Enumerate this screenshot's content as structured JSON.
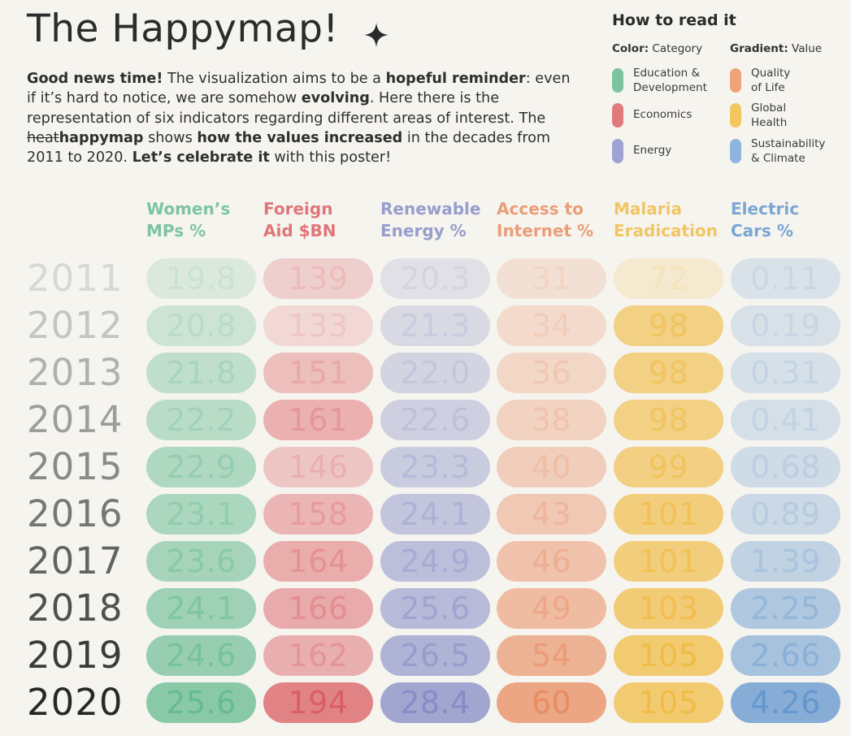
{
  "header": {
    "title": "The Happymap!"
  },
  "intro": {
    "p1_bold": "Good news time!",
    "p1": " The visualization aims to be a ",
    "p2_bold": "hopeful reminder",
    "p2": ": even if it’s hard to notice, we are somehow ",
    "p3_bold": "evolving",
    "p3": ". Here there is the representation of six indicators regarding different areas of interest. The ",
    "strike": "heat",
    "p4_bold": "happymap",
    "p4": " shows ",
    "p5_bold": "how the values increased",
    "p5": " in the decades from 2011 to 2020. ",
    "p6_bold": "Let’s celebrate it",
    "p6": " with this poster!"
  },
  "legend": {
    "title": "How to read it",
    "color_label": "Color:",
    "color_value": " Category",
    "gradient_label": "Gradient:",
    "gradient_value": " Value",
    "items": [
      {
        "label": "Education &\nDevelopment",
        "color": "#7cc4a0"
      },
      {
        "label": "Economics",
        "color": "#e07b7b"
      },
      {
        "label": "Energy",
        "color": "#9ea3d4"
      },
      {
        "label": "Quality\nof Life",
        "color": "#eea37a"
      },
      {
        "label": "Global\nHealth",
        "color": "#f2c75e"
      },
      {
        "label": "Sustainability\n& Climate",
        "color": "#8fb5de"
      }
    ]
  },
  "chart_data": {
    "type": "heatmap",
    "title": "The Happymap!",
    "rows": [
      "2011",
      "2012",
      "2013",
      "2014",
      "2015",
      "2016",
      "2017",
      "2018",
      "2019",
      "2020"
    ],
    "series": [
      {
        "name": "Women’s\nMPs %",
        "category": "Education & Development",
        "color": "#5fb88d",
        "values": [
          19.8,
          20.8,
          21.8,
          22.2,
          22.9,
          23.1,
          23.6,
          24.1,
          24.6,
          25.6
        ],
        "labels": [
          "19.8",
          "20.8",
          "21.8",
          "22.2",
          "22.9",
          "23.1",
          "23.6",
          "24.1",
          "24.6",
          "25.6"
        ]
      },
      {
        "name": "Foreign\nAid $BN",
        "category": "Economics",
        "color": "#d9575c",
        "values": [
          139,
          133,
          151,
          161,
          146,
          158,
          164,
          166,
          162,
          194
        ],
        "labels": [
          "139",
          "133",
          "151",
          "161",
          "146",
          "158",
          "164",
          "166",
          "162",
          "194"
        ]
      },
      {
        "name": "Renewable\nEnergy %",
        "category": "Energy",
        "color": "#7f87c4",
        "values": [
          20.3,
          21.3,
          22.0,
          22.6,
          23.3,
          24.1,
          24.9,
          25.6,
          26.5,
          28.4
        ],
        "labels": [
          "20.3",
          "21.3",
          "22.0",
          "22.6",
          "23.3",
          "24.1",
          "24.9",
          "25.6",
          "26.5",
          "28.4"
        ]
      },
      {
        "name": "Access to\nInternet %",
        "category": "Quality of Life",
        "color": "#e8875a",
        "values": [
          31,
          34,
          36,
          38,
          40,
          43,
          46,
          49,
          54,
          60
        ],
        "labels": [
          "31",
          "34",
          "36",
          "38",
          "40",
          "43",
          "46",
          "49",
          "54",
          "60"
        ]
      },
      {
        "name": "Malaria\nEradication",
        "category": "Global Health",
        "color": "#f0b93f",
        "values": [
          72,
          98,
          98,
          98,
          99,
          101,
          101,
          103,
          105,
          105
        ],
        "labels": [
          "72",
          "98",
          "98",
          "98",
          "99",
          "101",
          "101",
          "103",
          "105",
          "105"
        ]
      },
      {
        "name": "Electric\nCars %",
        "category": "Sustainability & Climate",
        "color": "#5c92cc",
        "values": [
          0.11,
          0.19,
          0.31,
          0.41,
          0.68,
          0.89,
          1.39,
          2.25,
          2.66,
          4.26
        ],
        "labels": [
          "0.11",
          "0.19",
          "0.31",
          "0.41",
          "0.68",
          "0.89",
          "1.39",
          "2.25",
          "2.66",
          "4.26"
        ]
      }
    ]
  }
}
